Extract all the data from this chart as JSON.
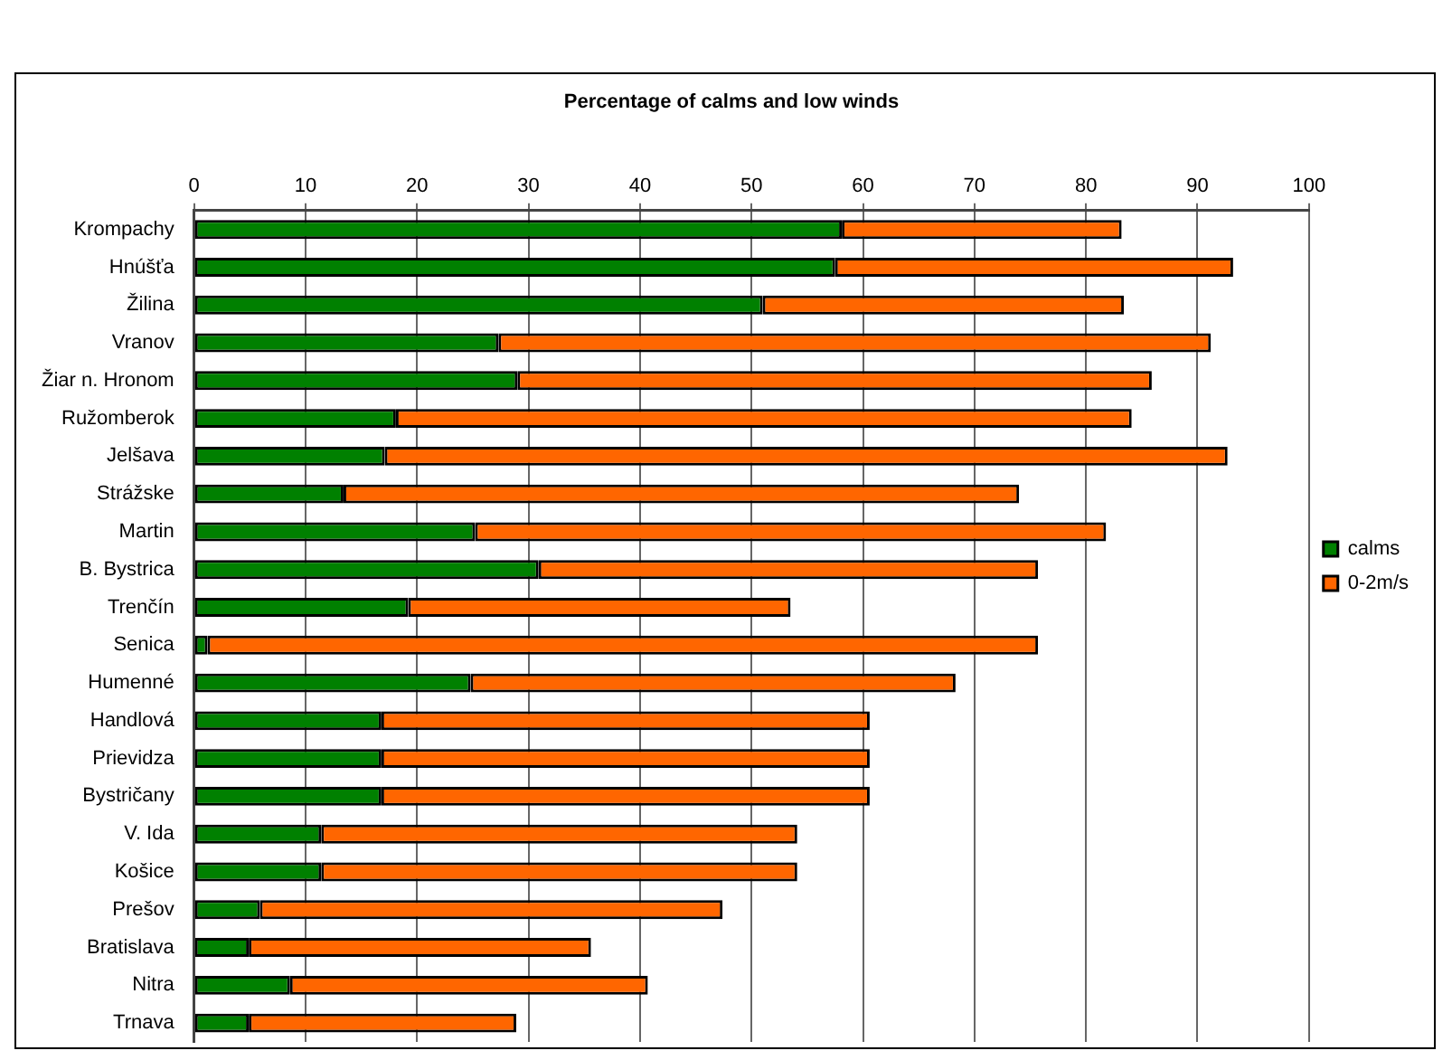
{
  "chart_data": {
    "type": "bar",
    "orientation": "horizontal",
    "stacked": true,
    "title": "Percentage of calms and low winds",
    "categories": [
      "Krompachy",
      "Hnúšťa",
      "Žilina",
      "Vranov",
      "Žiar n. Hronom",
      "Ružomberok",
      "Jelšava",
      "Strážske",
      "Martin",
      "B. Bystrica",
      "Trenčín",
      "Senica",
      "Humenné",
      "Handlová",
      "Prievidza",
      "Bystričany",
      "V. Ida",
      "Košice",
      "Prešov",
      "Bratislava",
      "Nitra",
      "Trnava"
    ],
    "series": [
      {
        "name": "calms",
        "color": "#008000",
        "values": [
          58.1,
          57.5,
          51.0,
          27.3,
          29.0,
          18.1,
          17.1,
          13.4,
          25.2,
          30.9,
          19.2,
          1.2,
          24.8,
          16.8,
          16.8,
          16.8,
          11.4,
          11.4,
          5.9,
          4.9,
          8.6,
          4.9
        ]
      },
      {
        "name": "0-2m/s",
        "color": "#ff6600",
        "values": [
          25.1,
          35.7,
          32.4,
          63.9,
          56.9,
          66.0,
          75.6,
          60.6,
          56.6,
          44.8,
          34.3,
          74.5,
          43.5,
          43.8,
          43.8,
          43.8,
          42.7,
          42.7,
          41.5,
          30.7,
          32.1,
          24.0
        ]
      }
    ],
    "xlim": [
      0,
      100
    ],
    "xticks": [
      0,
      10,
      20,
      30,
      40,
      50,
      60,
      70,
      80,
      90,
      100
    ],
    "grid": "x",
    "legend": "right"
  }
}
